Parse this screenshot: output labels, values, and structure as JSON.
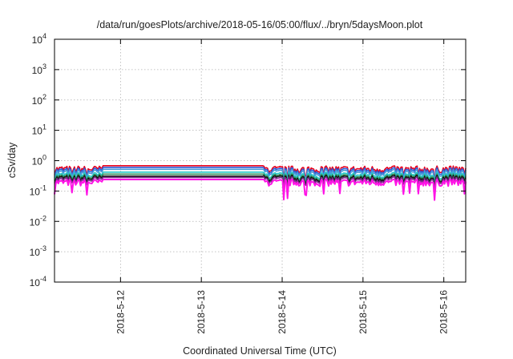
{
  "chart_data": {
    "type": "line",
    "title": "/data/run/goesPlots/archive/2018-05-16/05:00/flux/../bryn/5daysMoon.plot",
    "xlabel": "Coordinated Universal Time (UTC)",
    "ylabel": "cSv/day",
    "y_scale": "log",
    "ylim": [
      0.0001,
      10000
    ],
    "xlim": [
      "2018-05-11 04:24",
      "2018-05-16 06:30"
    ],
    "x_ticks": [
      "2018-5-12",
      "2018-5-13",
      "2018-5-14",
      "2018-5-15",
      "2018-5-16"
    ],
    "y_ticks": [
      {
        "value": 0.0001,
        "mantissa": "10",
        "exp": "-4"
      },
      {
        "value": 0.001,
        "mantissa": "10",
        "exp": "-3"
      },
      {
        "value": 0.01,
        "mantissa": "10",
        "exp": "-2"
      },
      {
        "value": 0.1,
        "mantissa": "10",
        "exp": "-1"
      },
      {
        "value": 1,
        "mantissa": "10",
        "exp": "0"
      },
      {
        "value": 10,
        "mantissa": "10",
        "exp": "1"
      },
      {
        "value": 100,
        "mantissa": "10",
        "exp": "2"
      },
      {
        "value": 1000,
        "mantissa": "10",
        "exp": "3"
      },
      {
        "value": 10000,
        "mantissa": "10",
        "exp": "4"
      }
    ],
    "grid": true,
    "legend": "none",
    "series": [
      {
        "color": "#e8001c",
        "base": 0.55,
        "flat": 0.68,
        "dip": 0.3
      },
      {
        "color": "#2a5bd7",
        "base": 0.48,
        "flat": 0.6,
        "dip": 0.25
      },
      {
        "color": "#4a9ad8",
        "base": 0.42,
        "flat": 0.52,
        "dip": 0.22
      },
      {
        "color": "#22c8c8",
        "base": 0.34,
        "flat": 0.42,
        "dip": 0.2
      },
      {
        "color": "#2e8b57",
        "base": 0.3,
        "flat": 0.36,
        "dip": 0.19
      },
      {
        "color": "#111111",
        "base": 0.27,
        "flat": 0.31,
        "dip": 0.17
      },
      {
        "color": "#7a2a8a",
        "base": 0.24,
        "flat": 0.28,
        "dip": 0.15
      },
      {
        "color": "#ff14e6",
        "base": 0.2,
        "flat": 0.24,
        "dip": 0.07
      }
    ],
    "flat_interval": [
      "2018-05-11 18:30",
      "2018-05-13 18:30"
    ]
  }
}
